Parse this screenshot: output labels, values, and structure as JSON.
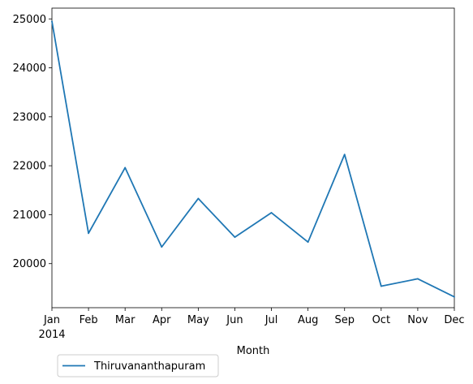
{
  "chart_data": {
    "type": "line",
    "categories": [
      "Jan",
      "Feb",
      "Mar",
      "Apr",
      "May",
      "Jun",
      "Jul",
      "Aug",
      "Sep",
      "Oct",
      "Nov",
      "Dec"
    ],
    "year_label": "2014",
    "series": [
      {
        "name": "Thiruvananthapuram",
        "color": "#1f77b4",
        "values": [
          24950,
          20620,
          21960,
          20340,
          21330,
          20540,
          21040,
          20440,
          22230,
          19540,
          19690,
          19320
        ]
      }
    ],
    "title": "",
    "xlabel": "Month",
    "ylabel": "",
    "ylim": [
      19100,
      25220
    ],
    "yticks": [
      20000,
      21000,
      22000,
      23000,
      24000,
      25000
    ],
    "legend_position": "lower-left, below axes",
    "grid": false
  }
}
